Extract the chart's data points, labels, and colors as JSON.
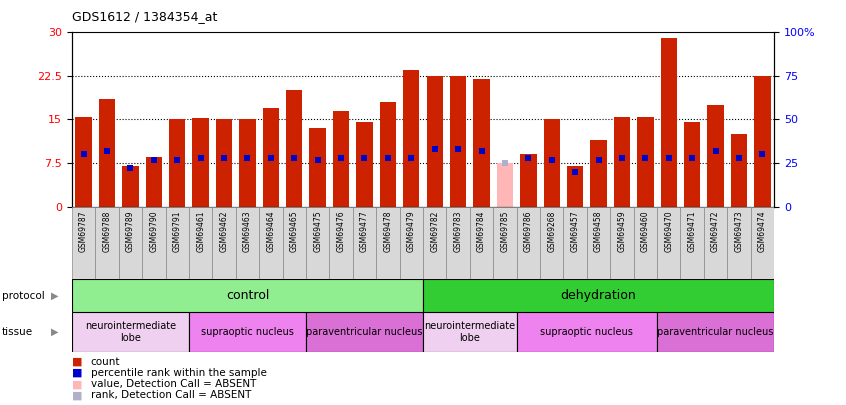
{
  "title": "GDS1612 / 1384354_at",
  "samples": [
    "GSM69787",
    "GSM69788",
    "GSM69789",
    "GSM69790",
    "GSM69791",
    "GSM69461",
    "GSM69462",
    "GSM69463",
    "GSM69464",
    "GSM69465",
    "GSM69475",
    "GSM69476",
    "GSM69477",
    "GSM69478",
    "GSM69479",
    "GSM69782",
    "GSM69783",
    "GSM69784",
    "GSM69785",
    "GSM69786",
    "GSM69268",
    "GSM69457",
    "GSM69458",
    "GSM69459",
    "GSM69460",
    "GSM69470",
    "GSM69471",
    "GSM69472",
    "GSM69473",
    "GSM69474"
  ],
  "counts": [
    15.5,
    18.5,
    7.0,
    8.5,
    15.0,
    15.2,
    15.0,
    15.0,
    17.0,
    20.0,
    13.5,
    16.5,
    14.5,
    18.0,
    23.5,
    22.5,
    22.5,
    22.0,
    7.5,
    9.0,
    15.0,
    7.0,
    11.5,
    15.5,
    15.5,
    29.0,
    14.5,
    17.5,
    12.5,
    22.5
  ],
  "ranks_pct": [
    30,
    32,
    22,
    27,
    27,
    28,
    28,
    28,
    28,
    28,
    27,
    28,
    28,
    28,
    28,
    33,
    33,
    32,
    25,
    28,
    27,
    20,
    27,
    28,
    28,
    28,
    28,
    32,
    28,
    30
  ],
  "absent": [
    false,
    false,
    false,
    false,
    false,
    false,
    false,
    false,
    false,
    false,
    false,
    false,
    false,
    false,
    false,
    false,
    false,
    false,
    true,
    false,
    false,
    false,
    false,
    false,
    false,
    false,
    false,
    false,
    false,
    false
  ],
  "protocol_groups": [
    {
      "label": "control",
      "start": 0,
      "end": 14,
      "color": "#90ee90"
    },
    {
      "label": "dehydration",
      "start": 15,
      "end": 29,
      "color": "#32cd32"
    }
  ],
  "tissue_groups": [
    {
      "label": "neurointermediate\nlobe",
      "start": 0,
      "end": 4,
      "color": "#f0d0f0"
    },
    {
      "label": "supraoptic nucleus",
      "start": 5,
      "end": 9,
      "color": "#ee82ee"
    },
    {
      "label": "paraventricular nucleus",
      "start": 10,
      "end": 14,
      "color": "#da70d6"
    },
    {
      "label": "neurointermediate\nlobe",
      "start": 15,
      "end": 18,
      "color": "#f0d0f0"
    },
    {
      "label": "supraoptic nucleus",
      "start": 19,
      "end": 24,
      "color": "#ee82ee"
    },
    {
      "label": "paraventricular nucleus",
      "start": 25,
      "end": 29,
      "color": "#da70d6"
    }
  ],
  "bar_color": "#cc2200",
  "absent_bar_color": "#ffb6b6",
  "rank_color": "#0000cc",
  "absent_rank_color": "#b0b0cc",
  "ylim_left": [
    0,
    30
  ],
  "ylim_right": [
    0,
    100
  ],
  "yticks_left": [
    0,
    7.5,
    15,
    22.5,
    30
  ],
  "ytick_labels_left": [
    "0",
    "7.5",
    "15",
    "22.5",
    "30"
  ],
  "ytick_labels_right": [
    "0",
    "25",
    "50",
    "75",
    "100%"
  ],
  "hlines": [
    7.5,
    15.0,
    22.5
  ],
  "background_color": "#ffffff",
  "tick_bg_color": "#d8d8d8"
}
